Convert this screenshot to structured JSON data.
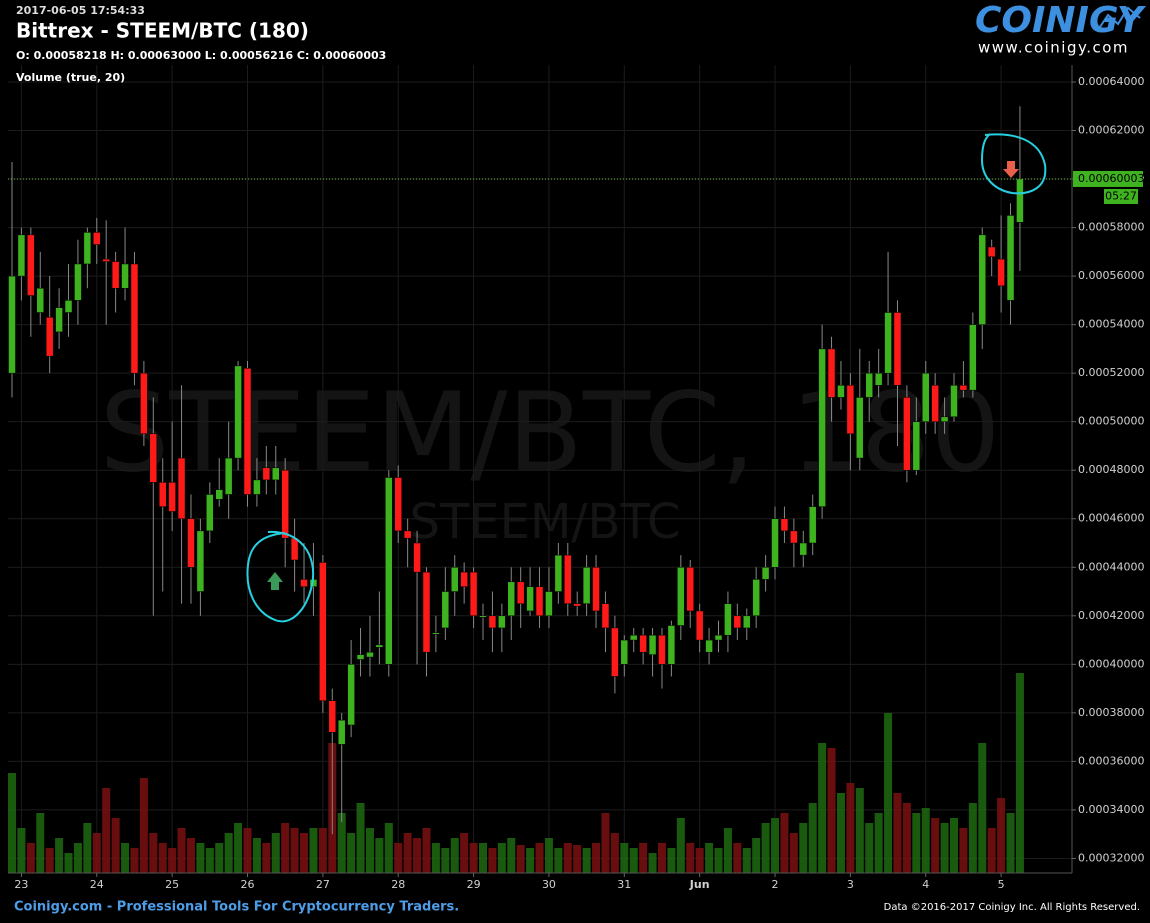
{
  "chart_data": {
    "type": "candlestick",
    "timestamp": "2017-06-05 17:54:33",
    "title": "Bittrex - STEEM/BTC (180)",
    "ohlc_header": "O: 0.00058218 H: 0.00063000 L: 0.00056216 C: 0.00060003",
    "volume_label": "Volume (true, 20)",
    "watermark": "STEEM/BTC, 180",
    "watermark_sub": "STEEM/BTC",
    "logo": "COINIGY",
    "logo_url": "www.coinigy.com",
    "footer_left": "Coinigy.com - Professional Tools For Cryptocurrency Traders.",
    "footer_right": "Data ©2016-2017 Coinigy Inc. All Rights Reserved.",
    "countdown": "05:27",
    "up_color": "#3fb31f",
    "down_color": "#ff1a1a",
    "volume_up_color": "#1d6a12",
    "volume_down_color": "#7a1010",
    "grid": true,
    "ylim": [
      0.000314,
      0.000647
    ],
    "yticks": [
      {
        "value": 0.00032,
        "label": "0.00032000"
      },
      {
        "value": 0.00034,
        "label": "0.00034000"
      },
      {
        "value": 0.00036,
        "label": "0.00036000"
      },
      {
        "value": 0.00038,
        "label": "0.00038000"
      },
      {
        "value": 0.0004,
        "label": "0.00040000"
      },
      {
        "value": 0.00042,
        "label": "0.00042000"
      },
      {
        "value": 0.00044,
        "label": "0.00044000"
      },
      {
        "value": 0.00046,
        "label": "0.00046000"
      },
      {
        "value": 0.00048,
        "label": "0.00048000"
      },
      {
        "value": 0.0005,
        "label": "0.00050000"
      },
      {
        "value": 0.00052,
        "label": "0.00052000"
      },
      {
        "value": 0.00054,
        "label": "0.00054000"
      },
      {
        "value": 0.00056,
        "label": "0.00056000"
      },
      {
        "value": 0.00058,
        "label": "0.00058000"
      },
      {
        "value": 0.0006,
        "label": "0.00060000"
      },
      {
        "value": 0.00062,
        "label": "0.00062000"
      },
      {
        "value": 0.00064,
        "label": "0.00064000"
      }
    ],
    "xticks": [
      {
        "value": 1,
        "label": "23"
      },
      {
        "value": 9,
        "label": "24"
      },
      {
        "value": 17,
        "label": "25"
      },
      {
        "value": 25,
        "label": "26"
      },
      {
        "value": 33,
        "label": "27"
      },
      {
        "value": 41,
        "label": "28"
      },
      {
        "value": 49,
        "label": "29"
      },
      {
        "value": 57,
        "label": "30"
      },
      {
        "value": 65,
        "label": "31"
      },
      {
        "value": 73,
        "label": "Jun"
      },
      {
        "value": 81,
        "label": "2"
      },
      {
        "value": 89,
        "label": "3"
      },
      {
        "value": 97,
        "label": "4"
      },
      {
        "value": 105,
        "label": "5"
      }
    ],
    "open": [
      0.00052,
      0.00056,
      0.000577,
      0.000545,
      0.000543,
      0.000537,
      0.000545,
      0.00055,
      0.000565,
      0.000578,
      0.000567,
      0.000566,
      0.000555,
      0.000565,
      0.00052,
      0.000495,
      0.000475,
      0.000475,
      0.000485,
      0.00046,
      0.00043,
      0.000455,
      0.000468,
      0.00047,
      0.000485,
      0.000522,
      0.00047,
      0.000481,
      0.000476,
      0.00048,
      0.000452,
      0.000435,
      0.000432,
      0.000442,
      0.000385,
      0.000367,
      0.000375,
      0.000402,
      0.000403,
      0.000407,
      0.0004,
      0.000477,
      0.000455,
      0.00045,
      0.000438,
      0.000413,
      0.000415,
      0.00043,
      0.000438,
      0.000438,
      0.00042,
      0.00042,
      0.000415,
      0.00042,
      0.000434,
      0.000422,
      0.000432,
      0.00042,
      0.00043,
      0.000445,
      0.000425,
      0.000425,
      0.00044,
      0.000425,
      0.000415,
      0.0004,
      0.00041,
      0.000412,
      0.000404,
      0.000412,
      0.0004,
      0.000416,
      0.00044,
      0.000422,
      0.000405,
      0.00041,
      0.000412,
      0.00042,
      0.000415,
      0.00042,
      0.000435,
      0.00044,
      0.00046,
      0.000455,
      0.000445,
      0.00045,
      0.000465,
      0.00053,
      0.00051,
      0.000515,
      0.000485,
      0.00051,
      0.000515,
      0.00052,
      0.000545,
      0.00051,
      0.00048,
      0.0005,
      0.000515,
      0.0005,
      0.000502,
      0.000515,
      0.000513,
      0.00054,
      0.000572,
      0.000567,
      0.00055,
      0.00058218
    ],
    "high": [
      0.000607,
      0.00058,
      0.00058,
      0.00057,
      0.00056,
      0.000555,
      0.000565,
      0.000575,
      0.00058,
      0.000584,
      0.000583,
      0.00057,
      0.00058,
      0.00057,
      0.000525,
      0.00051,
      0.000485,
      0.0005,
      0.000515,
      0.00047,
      0.00046,
      0.000475,
      0.000485,
      0.0005,
      0.000525,
      0.000525,
      0.000485,
      0.00049,
      0.00049,
      0.000485,
      0.00046,
      0.00045,
      0.00045,
      0.000445,
      0.00039,
      0.00038,
      0.00041,
      0.000415,
      0.00042,
      0.00043,
      0.00048,
      0.000482,
      0.00046,
      0.000455,
      0.00044,
      0.00042,
      0.00044,
      0.000445,
      0.000442,
      0.00044,
      0.000425,
      0.00043,
      0.000425,
      0.00044,
      0.00044,
      0.00044,
      0.00044,
      0.00044,
      0.00045,
      0.00045,
      0.00043,
      0.000445,
      0.000445,
      0.00043,
      0.00042,
      0.000412,
      0.000415,
      0.000415,
      0.000415,
      0.000415,
      0.000418,
      0.000445,
      0.000443,
      0.000425,
      0.000415,
      0.000418,
      0.00043,
      0.000425,
      0.000423,
      0.00044,
      0.000445,
      0.000465,
      0.000465,
      0.00046,
      0.000455,
      0.00047,
      0.00054,
      0.000535,
      0.000525,
      0.00052,
      0.00053,
      0.000525,
      0.00053,
      0.00057,
      0.00055,
      0.000515,
      0.00051,
      0.000525,
      0.00052,
      0.00051,
      0.00052,
      0.000525,
      0.000545,
      0.00058,
      0.000575,
      0.000585,
      0.00059,
      0.00063
    ],
    "low": [
      0.00051,
      0.00055,
      0.000535,
      0.00054,
      0.00052,
      0.00053,
      0.000535,
      0.00054,
      0.000555,
      0.000565,
      0.00054,
      0.000545,
      0.00055,
      0.000515,
      0.00049,
      0.00042,
      0.00043,
      0.000455,
      0.000425,
      0.000425,
      0.00042,
      0.00045,
      0.000465,
      0.00046,
      0.00048,
      0.000465,
      0.000465,
      0.00047,
      0.00047,
      0.00044,
      0.00043,
      0.000425,
      0.00042,
      0.00038,
      0.00033,
      0.000335,
      0.00037,
      0.000395,
      0.000395,
      0.0004,
      0.000395,
      0.00045,
      0.00044,
      0.0004,
      0.000395,
      0.000405,
      0.00041,
      0.00042,
      0.000425,
      0.000415,
      0.00041,
      0.000405,
      0.000405,
      0.00041,
      0.000415,
      0.00042,
      0.000415,
      0.000415,
      0.000425,
      0.00042,
      0.00042,
      0.00042,
      0.000415,
      0.000405,
      0.000388,
      0.000395,
      0.000405,
      0.0004,
      0.000395,
      0.00039,
      0.000395,
      0.00041,
      0.000415,
      0.000405,
      0.0004,
      0.000405,
      0.000405,
      0.00041,
      0.00041,
      0.000415,
      0.00043,
      0.000435,
      0.00045,
      0.00044,
      0.00044,
      0.000445,
      0.00046,
      0.0005,
      0.000505,
      0.00048,
      0.00048,
      0.0005,
      0.00051,
      0.000515,
      0.00049,
      0.000475,
      0.000478,
      0.000495,
      0.000495,
      0.000495,
      0.0005,
      0.00051,
      0.00051,
      0.00053,
      0.00056,
      0.000545,
      0.00054,
      0.00056216
    ],
    "close": [
      0.00056,
      0.000577,
      0.000552,
      0.000555,
      0.000527,
      0.000547,
      0.00055,
      0.000565,
      0.000578,
      0.000573,
      0.000566,
      0.000555,
      0.000565,
      0.00052,
      0.000495,
      0.000475,
      0.000465,
      0.000463,
      0.00046,
      0.00044,
      0.000455,
      0.00047,
      0.000472,
      0.000485,
      0.000523,
      0.00047,
      0.000476,
      0.000476,
      0.000481,
      0.000452,
      0.000443,
      0.000432,
      0.000435,
      0.000385,
      0.000372,
      0.000377,
      0.0004,
      0.000404,
      0.000405,
      0.000408,
      0.000477,
      0.000455,
      0.000452,
      0.000438,
      0.000405,
      0.000413,
      0.00043,
      0.00044,
      0.000432,
      0.00042,
      0.00042,
      0.000415,
      0.00042,
      0.000434,
      0.000425,
      0.000432,
      0.00042,
      0.00043,
      0.000445,
      0.000425,
      0.000424,
      0.00044,
      0.000422,
      0.000415,
      0.000395,
      0.00041,
      0.000412,
      0.000405,
      0.000412,
      0.0004,
      0.000416,
      0.00044,
      0.000422,
      0.00041,
      0.00041,
      0.000412,
      0.000425,
      0.000415,
      0.00042,
      0.000435,
      0.00044,
      0.00046,
      0.000455,
      0.00045,
      0.00045,
      0.000465,
      0.00053,
      0.00051,
      0.000515,
      0.000495,
      0.00051,
      0.00052,
      0.00052,
      0.000545,
      0.000515,
      0.00048,
      0.0005,
      0.00052,
      0.0005,
      0.000502,
      0.000515,
      0.000513,
      0.00054,
      0.000577,
      0.000568,
      0.000556,
      0.000585,
      0.00060003
    ],
    "volume": [
      100,
      45,
      30,
      60,
      25,
      35,
      20,
      30,
      50,
      40,
      85,
      55,
      30,
      25,
      95,
      40,
      30,
      25,
      45,
      35,
      30,
      25,
      30,
      40,
      50,
      45,
      35,
      30,
      40,
      50,
      45,
      40,
      45,
      45,
      130,
      60,
      40,
      70,
      45,
      35,
      50,
      30,
      40,
      35,
      45,
      30,
      25,
      35,
      40,
      30,
      30,
      25,
      30,
      35,
      28,
      25,
      30,
      35,
      25,
      30,
      28,
      25,
      30,
      60,
      40,
      30,
      25,
      30,
      20,
      30,
      25,
      55,
      30,
      25,
      30,
      25,
      45,
      30,
      25,
      35,
      50,
      55,
      60,
      40,
      50,
      70,
      130,
      125,
      80,
      90,
      85,
      50,
      60,
      160,
      80,
      70,
      60,
      65,
      55,
      50,
      55,
      45,
      70,
      130,
      45,
      75,
      60,
      200
    ]
  }
}
